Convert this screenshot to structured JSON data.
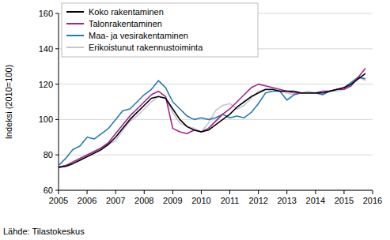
{
  "chart_data": {
    "type": "line",
    "y_label": "Indeksi (2010=100)",
    "source": "Lähde: Tilastokeskus",
    "x": [
      2005,
      2005.25,
      2005.5,
      2005.75,
      2006,
      2006.25,
      2006.5,
      2006.75,
      2007,
      2007.25,
      2007.5,
      2007.75,
      2008,
      2008.25,
      2008.5,
      2008.75,
      2009,
      2009.25,
      2009.5,
      2009.75,
      2010,
      2010.25,
      2010.5,
      2010.75,
      2011,
      2011.25,
      2011.5,
      2011.75,
      2012,
      2012.25,
      2012.5,
      2012.75,
      2013,
      2013.25,
      2013.5,
      2013.75,
      2014,
      2014.25,
      2014.5,
      2014.75,
      2015,
      2015.25,
      2015.5,
      2015.75
    ],
    "series": [
      {
        "name": "Koko rakentaminen",
        "color": "#000000",
        "values": [
          73,
          73.5,
          75,
          77,
          79,
          81,
          83,
          86,
          90,
          95,
          100,
          104,
          108,
          112,
          113,
          112,
          106,
          100,
          96,
          94,
          93,
          94,
          97,
          100,
          103,
          107,
          110,
          113,
          115,
          117,
          117,
          116,
          116,
          116,
          115,
          115,
          115,
          115,
          116,
          117,
          118,
          120,
          123,
          126
        ]
      },
      {
        "name": "Talonrakentaminen",
        "color": "#a3238e",
        "values": [
          73,
          74,
          76,
          78,
          80,
          82,
          84,
          87,
          92,
          97,
          102,
          106,
          110,
          114,
          116,
          113,
          95,
          93,
          92,
          94,
          93,
          95,
          99,
          103,
          106,
          110,
          114,
          118,
          120,
          119,
          118,
          117,
          116,
          115,
          115,
          115,
          115,
          116,
          116,
          117,
          117,
          119,
          124,
          129
        ]
      },
      {
        "name": "Maa- ja vesirakentaminen",
        "color": "#2a7ab0",
        "values": [
          74,
          78,
          83,
          85,
          90,
          89,
          92,
          95,
          100,
          105,
          106,
          110,
          114,
          117,
          122,
          118,
          110,
          106,
          102,
          100,
          101,
          100,
          101,
          103,
          101,
          102,
          101,
          104,
          109,
          115,
          116,
          116,
          111,
          114,
          115,
          115,
          115,
          114,
          116,
          117,
          118,
          121,
          124,
          123
        ]
      },
      {
        "name": "Erikoistunut rakennustoiminta",
        "color": "#c4c4d4",
        "values": [
          73,
          74,
          76,
          78,
          80,
          82,
          84,
          86,
          88,
          94,
          99,
          102,
          106,
          110,
          113,
          112,
          104,
          98,
          96,
          95,
          93,
          98,
          105,
          108,
          109,
          106,
          108,
          112,
          116,
          117,
          116,
          116,
          115,
          114,
          115,
          116,
          115,
          116,
          116,
          116,
          117,
          120,
          124,
          122
        ]
      }
    ],
    "xlim": [
      2005,
      2016
    ],
    "xticks": [
      2005,
      2006,
      2007,
      2008,
      2009,
      2010,
      2011,
      2012,
      2013,
      2014,
      2015,
      2016
    ],
    "ylim": [
      60,
      160
    ],
    "yticks": [
      60,
      80,
      100,
      120,
      140,
      160
    ],
    "grid": true,
    "legend": "top-left"
  }
}
